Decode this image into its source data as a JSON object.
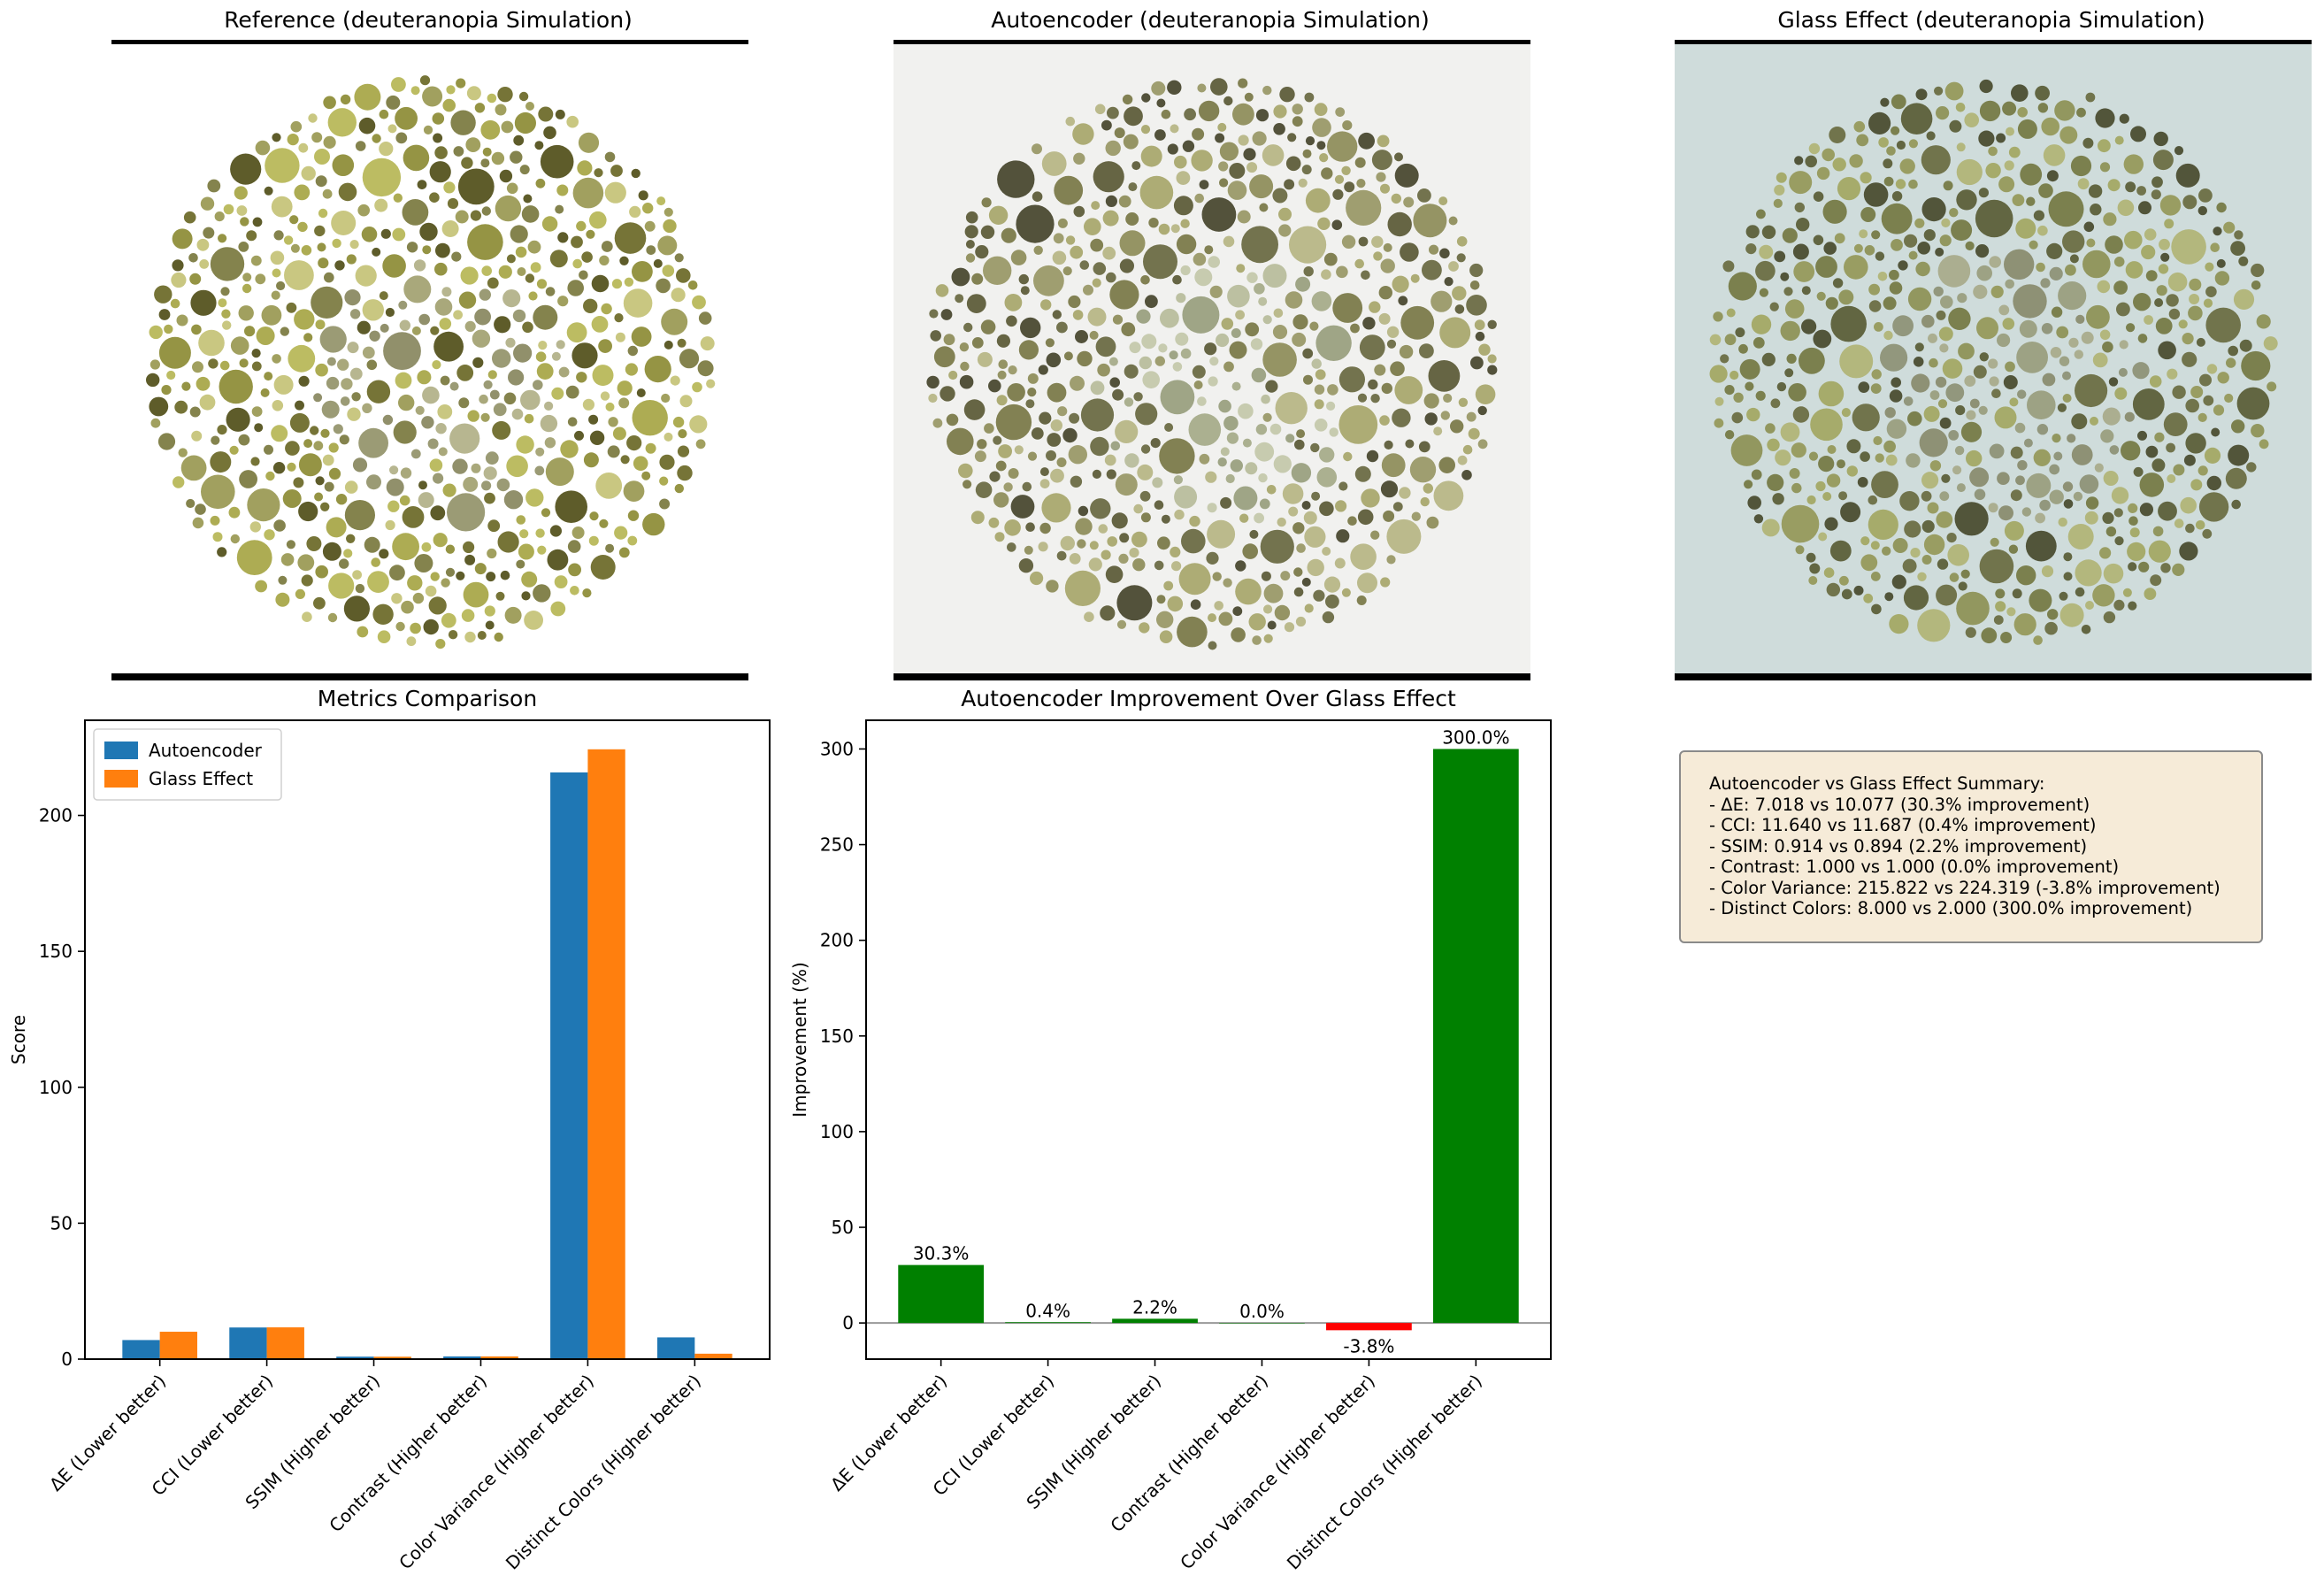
{
  "image_panels": [
    {
      "title": "Reference (deuteranopia Simulation)",
      "background": "#ffffff",
      "dot_palette": [
        "#b8b85a",
        "#a9a84a",
        "#8f8e3a",
        "#6f6d2c",
        "#55531f",
        "#c6c47a",
        "#9c9b56",
        "#7d7c43"
      ],
      "center_palette": [
        "#a4a374",
        "#96966e",
        "#b3b28a",
        "#8b8a63"
      ]
    },
    {
      "title": "Autoencoder (deuteranopia Simulation)",
      "background": "#f1f1ef",
      "dot_palette": [
        "#a9a86e",
        "#8f8e5c",
        "#7b7a4a",
        "#5e5d3a",
        "#4a4930",
        "#b7b686",
        "#9a9968",
        "#6c6b45"
      ],
      "center_palette": [
        "#b8bd9c",
        "#a6ac8a",
        "#c4c8ab",
        "#9aa07f"
      ]
    },
    {
      "title": "Glass Effect (deuteranopia Simulation)",
      "background": "#cfdcdb",
      "dot_palette": [
        "#a3a865",
        "#8e9258",
        "#767a47",
        "#5c5f3a",
        "#4b4d31",
        "#b1b478",
        "#96995c",
        "#6c6e44"
      ],
      "center_palette": [
        "#9a9e80",
        "#8e9278",
        "#a9ab8c",
        "#8a8c70"
      ]
    }
  ],
  "chart_data": [
    {
      "type": "bar",
      "title": "Metrics Comparison",
      "xlabel": "",
      "ylabel": "Score",
      "categories": [
        "ΔE (Lower better)",
        "CCI (Lower better)",
        "SSIM (Higher better)",
        "Contrast (Higher better)",
        "Color Variance (Higher better)",
        "Distinct Colors (Higher better)"
      ],
      "series": [
        {
          "name": "Autoencoder",
          "color": "#1f77b4",
          "values": [
            7.018,
            11.64,
            0.914,
            1.0,
            215.822,
            8.0
          ]
        },
        {
          "name": "Glass Effect",
          "color": "#ff7f0e",
          "values": [
            10.077,
            11.687,
            0.894,
            1.0,
            224.319,
            2.0
          ]
        }
      ],
      "ylim": [
        0,
        235
      ],
      "yticks": [
        "0",
        "50",
        "100",
        "150",
        "200"
      ],
      "legend_position": "top-left",
      "grid": false
    },
    {
      "type": "bar",
      "title": "Autoencoder Improvement Over Glass Effect",
      "xlabel": "",
      "ylabel": "Improvement (%)",
      "categories": [
        "ΔE (Lower better)",
        "CCI (Lower better)",
        "SSIM (Higher better)",
        "Contrast (Higher better)",
        "Color Variance (Higher better)",
        "Distinct Colors (Higher better)"
      ],
      "values": [
        30.3,
        0.4,
        2.2,
        0.0,
        -3.8,
        300.0
      ],
      "data_labels": [
        "30.3%",
        "0.4%",
        "2.2%",
        "0.0%",
        "-3.8%",
        "300.0%"
      ],
      "positive_color": "#008000",
      "negative_color": "#ff0000",
      "ylim": [
        -18.9,
        315
      ],
      "yticks": [
        "0",
        "50",
        "100",
        "150",
        "200",
        "250",
        "300"
      ],
      "zero_line": true,
      "grid": false
    }
  ],
  "summary": {
    "lines": [
      "Autoencoder vs Glass Effect Summary:",
      "- ΔE: 7.018 vs 10.077 (30.3% improvement)",
      "- CCI: 11.640 vs 11.687 (0.4% improvement)",
      "- SSIM: 0.914 vs 0.894 (2.2% improvement)",
      "- Contrast: 1.000 vs 1.000 (0.0% improvement)",
      "- Color Variance: 215.822 vs 224.319 (-3.8% improvement)",
      "- Distinct Colors: 8.000 vs 2.000 (300.0% improvement)"
    ]
  }
}
